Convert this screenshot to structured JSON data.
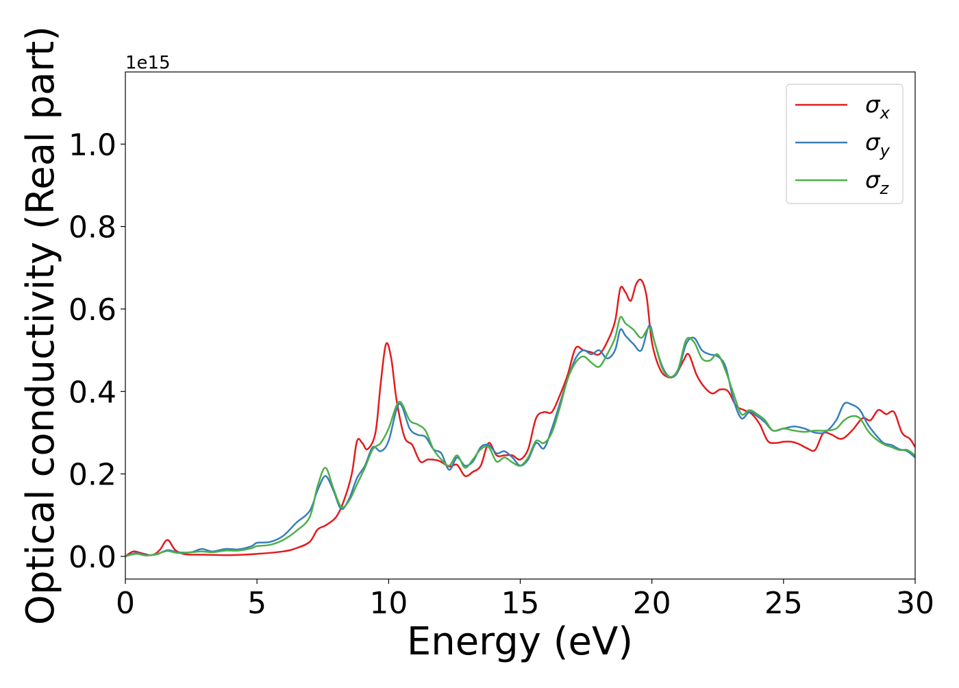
{
  "chart_data": {
    "type": "line",
    "xlabel": "Energy (eV)",
    "ylabel": "Optical conductivity (Real part)",
    "offset_label": "1e15",
    "xlim": [
      0,
      30
    ],
    "ylim": [
      -0.055,
      1.175
    ],
    "x_ticks": [
      0,
      5,
      10,
      15,
      20,
      25,
      30
    ],
    "x_tick_labels": [
      "0",
      "5",
      "10",
      "15",
      "20",
      "25",
      "30"
    ],
    "y_ticks": [
      0.0,
      0.2,
      0.4,
      0.6,
      0.8,
      1.0
    ],
    "y_tick_labels": [
      "0.0",
      "0.2",
      "0.4",
      "0.6",
      "0.8",
      "1.0"
    ],
    "grid": false,
    "legend_position": "top-right",
    "series": [
      {
        "name": "σx",
        "symbol": "σ",
        "subscript": "x",
        "color": "#e41a1c",
        "points": [
          [
            0,
            0.0
          ],
          [
            0.3,
            0.012
          ],
          [
            0.6,
            0.008
          ],
          [
            1.0,
            0.003
          ],
          [
            1.3,
            0.015
          ],
          [
            1.6,
            0.04
          ],
          [
            1.9,
            0.015
          ],
          [
            2.3,
            0.005
          ],
          [
            3,
            0.004
          ],
          [
            4,
            0.003
          ],
          [
            5,
            0.006
          ],
          [
            6,
            0.012
          ],
          [
            6.5,
            0.02
          ],
          [
            7,
            0.035
          ],
          [
            7.3,
            0.065
          ],
          [
            7.6,
            0.075
          ],
          [
            8,
            0.095
          ],
          [
            8.3,
            0.135
          ],
          [
            8.6,
            0.2
          ],
          [
            8.8,
            0.28
          ],
          [
            9.0,
            0.275
          ],
          [
            9.2,
            0.26
          ],
          [
            9.5,
            0.3
          ],
          [
            9.7,
            0.42
          ],
          [
            9.9,
            0.515
          ],
          [
            10.1,
            0.48
          ],
          [
            10.3,
            0.38
          ],
          [
            10.6,
            0.29
          ],
          [
            10.9,
            0.27
          ],
          [
            11.2,
            0.23
          ],
          [
            11.5,
            0.235
          ],
          [
            11.9,
            0.232
          ],
          [
            12.3,
            0.218
          ],
          [
            12.6,
            0.222
          ],
          [
            12.9,
            0.195
          ],
          [
            13.2,
            0.205
          ],
          [
            13.5,
            0.22
          ],
          [
            13.8,
            0.275
          ],
          [
            14.1,
            0.245
          ],
          [
            14.4,
            0.245
          ],
          [
            14.7,
            0.245
          ],
          [
            15.0,
            0.235
          ],
          [
            15.3,
            0.26
          ],
          [
            15.6,
            0.335
          ],
          [
            15.9,
            0.35
          ],
          [
            16.2,
            0.35
          ],
          [
            16.5,
            0.39
          ],
          [
            16.8,
            0.44
          ],
          [
            17.1,
            0.505
          ],
          [
            17.4,
            0.5
          ],
          [
            17.7,
            0.495
          ],
          [
            18.0,
            0.49
          ],
          [
            18.3,
            0.52
          ],
          [
            18.6,
            0.57
          ],
          [
            18.8,
            0.65
          ],
          [
            19.0,
            0.64
          ],
          [
            19.2,
            0.62
          ],
          [
            19.4,
            0.66
          ],
          [
            19.6,
            0.67
          ],
          [
            19.8,
            0.63
          ],
          [
            20.0,
            0.52
          ],
          [
            20.3,
            0.455
          ],
          [
            20.6,
            0.435
          ],
          [
            20.9,
            0.44
          ],
          [
            21.2,
            0.475
          ],
          [
            21.4,
            0.49
          ],
          [
            21.7,
            0.44
          ],
          [
            22.0,
            0.41
          ],
          [
            22.3,
            0.395
          ],
          [
            22.6,
            0.405
          ],
          [
            22.9,
            0.4
          ],
          [
            23.2,
            0.365
          ],
          [
            23.5,
            0.355
          ],
          [
            23.8,
            0.345
          ],
          [
            24.1,
            0.32
          ],
          [
            24.4,
            0.28
          ],
          [
            24.7,
            0.275
          ],
          [
            25.0,
            0.278
          ],
          [
            25.3,
            0.278
          ],
          [
            25.6,
            0.272
          ],
          [
            25.9,
            0.262
          ],
          [
            26.2,
            0.258
          ],
          [
            26.5,
            0.298
          ],
          [
            26.8,
            0.296
          ],
          [
            27.2,
            0.285
          ],
          [
            27.6,
            0.305
          ],
          [
            28.0,
            0.335
          ],
          [
            28.3,
            0.33
          ],
          [
            28.6,
            0.355
          ],
          [
            28.9,
            0.345
          ],
          [
            29.2,
            0.35
          ],
          [
            29.5,
            0.3
          ],
          [
            29.8,
            0.285
          ],
          [
            30.0,
            0.265
          ]
        ]
      },
      {
        "name": "σy",
        "symbol": "σ",
        "subscript": "y",
        "color": "#377eb8",
        "points": [
          [
            0,
            0.0
          ],
          [
            0.4,
            0.008
          ],
          [
            0.8,
            0.003
          ],
          [
            1.2,
            0.005
          ],
          [
            1.6,
            0.015
          ],
          [
            2.0,
            0.01
          ],
          [
            2.5,
            0.01
          ],
          [
            2.9,
            0.018
          ],
          [
            3.3,
            0.012
          ],
          [
            3.8,
            0.018
          ],
          [
            4.3,
            0.017
          ],
          [
            4.8,
            0.025
          ],
          [
            5.0,
            0.033
          ],
          [
            5.5,
            0.035
          ],
          [
            6.0,
            0.05
          ],
          [
            6.5,
            0.082
          ],
          [
            7.0,
            0.11
          ],
          [
            7.3,
            0.16
          ],
          [
            7.6,
            0.195
          ],
          [
            7.9,
            0.16
          ],
          [
            8.2,
            0.115
          ],
          [
            8.5,
            0.14
          ],
          [
            8.8,
            0.19
          ],
          [
            9.1,
            0.22
          ],
          [
            9.4,
            0.265
          ],
          [
            9.7,
            0.255
          ],
          [
            10.0,
            0.28
          ],
          [
            10.4,
            0.37
          ],
          [
            10.8,
            0.31
          ],
          [
            11.1,
            0.295
          ],
          [
            11.4,
            0.29
          ],
          [
            11.7,
            0.26
          ],
          [
            12.0,
            0.25
          ],
          [
            12.3,
            0.21
          ],
          [
            12.6,
            0.24
          ],
          [
            12.9,
            0.22
          ],
          [
            13.2,
            0.23
          ],
          [
            13.5,
            0.265
          ],
          [
            13.8,
            0.27
          ],
          [
            14.1,
            0.25
          ],
          [
            14.4,
            0.255
          ],
          [
            14.7,
            0.24
          ],
          [
            15.0,
            0.22
          ],
          [
            15.3,
            0.235
          ],
          [
            15.6,
            0.275
          ],
          [
            15.9,
            0.262
          ],
          [
            16.2,
            0.31
          ],
          [
            16.5,
            0.37
          ],
          [
            16.8,
            0.43
          ],
          [
            17.1,
            0.48
          ],
          [
            17.4,
            0.5
          ],
          [
            17.7,
            0.49
          ],
          [
            18.0,
            0.5
          ],
          [
            18.3,
            0.48
          ],
          [
            18.6,
            0.5
          ],
          [
            18.8,
            0.55
          ],
          [
            19.0,
            0.535
          ],
          [
            19.3,
            0.515
          ],
          [
            19.6,
            0.5
          ],
          [
            19.9,
            0.56
          ],
          [
            20.1,
            0.52
          ],
          [
            20.4,
            0.46
          ],
          [
            20.7,
            0.435
          ],
          [
            21.0,
            0.45
          ],
          [
            21.3,
            0.515
          ],
          [
            21.6,
            0.53
          ],
          [
            21.9,
            0.5
          ],
          [
            22.2,
            0.49
          ],
          [
            22.5,
            0.485
          ],
          [
            22.8,
            0.46
          ],
          [
            23.1,
            0.38
          ],
          [
            23.4,
            0.335
          ],
          [
            23.7,
            0.35
          ],
          [
            24.0,
            0.34
          ],
          [
            24.3,
            0.325
          ],
          [
            24.6,
            0.305
          ],
          [
            25.0,
            0.31
          ],
          [
            25.4,
            0.315
          ],
          [
            25.8,
            0.31
          ],
          [
            26.2,
            0.3
          ],
          [
            26.6,
            0.302
          ],
          [
            27.0,
            0.33
          ],
          [
            27.3,
            0.37
          ],
          [
            27.6,
            0.368
          ],
          [
            27.9,
            0.355
          ],
          [
            28.2,
            0.32
          ],
          [
            28.5,
            0.295
          ],
          [
            28.8,
            0.275
          ],
          [
            29.1,
            0.27
          ],
          [
            29.4,
            0.26
          ],
          [
            29.7,
            0.255
          ],
          [
            30.0,
            0.24
          ]
        ]
      },
      {
        "name": "σz",
        "symbol": "σ",
        "subscript": "z",
        "color": "#4daf4a",
        "points": [
          [
            0,
            0.0
          ],
          [
            0.4,
            0.006
          ],
          [
            0.8,
            0.002
          ],
          [
            1.2,
            0.006
          ],
          [
            1.6,
            0.013
          ],
          [
            2.0,
            0.008
          ],
          [
            2.5,
            0.01
          ],
          [
            2.9,
            0.012
          ],
          [
            3.3,
            0.01
          ],
          [
            3.8,
            0.014
          ],
          [
            4.3,
            0.014
          ],
          [
            4.8,
            0.02
          ],
          [
            5.0,
            0.025
          ],
          [
            5.5,
            0.028
          ],
          [
            6.0,
            0.04
          ],
          [
            6.5,
            0.062
          ],
          [
            7.0,
            0.095
          ],
          [
            7.3,
            0.17
          ],
          [
            7.6,
            0.215
          ],
          [
            7.9,
            0.165
          ],
          [
            8.2,
            0.12
          ],
          [
            8.5,
            0.135
          ],
          [
            8.8,
            0.175
          ],
          [
            9.1,
            0.215
          ],
          [
            9.4,
            0.26
          ],
          [
            9.7,
            0.275
          ],
          [
            10.0,
            0.31
          ],
          [
            10.4,
            0.375
          ],
          [
            10.8,
            0.33
          ],
          [
            11.1,
            0.32
          ],
          [
            11.4,
            0.305
          ],
          [
            11.7,
            0.26
          ],
          [
            12.0,
            0.235
          ],
          [
            12.3,
            0.22
          ],
          [
            12.6,
            0.245
          ],
          [
            12.9,
            0.215
          ],
          [
            13.2,
            0.235
          ],
          [
            13.5,
            0.26
          ],
          [
            13.8,
            0.265
          ],
          [
            14.1,
            0.23
          ],
          [
            14.4,
            0.24
          ],
          [
            14.7,
            0.228
          ],
          [
            15.0,
            0.22
          ],
          [
            15.3,
            0.24
          ],
          [
            15.6,
            0.28
          ],
          [
            15.9,
            0.275
          ],
          [
            16.2,
            0.3
          ],
          [
            16.5,
            0.36
          ],
          [
            16.8,
            0.43
          ],
          [
            17.1,
            0.47
          ],
          [
            17.4,
            0.485
          ],
          [
            17.7,
            0.47
          ],
          [
            18.0,
            0.46
          ],
          [
            18.3,
            0.49
          ],
          [
            18.6,
            0.53
          ],
          [
            18.8,
            0.58
          ],
          [
            19.0,
            0.565
          ],
          [
            19.3,
            0.55
          ],
          [
            19.6,
            0.53
          ],
          [
            19.9,
            0.555
          ],
          [
            20.1,
            0.52
          ],
          [
            20.4,
            0.455
          ],
          [
            20.7,
            0.435
          ],
          [
            21.0,
            0.455
          ],
          [
            21.3,
            0.525
          ],
          [
            21.6,
            0.52
          ],
          [
            21.9,
            0.48
          ],
          [
            22.2,
            0.475
          ],
          [
            22.5,
            0.49
          ],
          [
            22.8,
            0.45
          ],
          [
            23.1,
            0.395
          ],
          [
            23.4,
            0.345
          ],
          [
            23.7,
            0.355
          ],
          [
            24.0,
            0.345
          ],
          [
            24.3,
            0.33
          ],
          [
            24.6,
            0.305
          ],
          [
            25.0,
            0.31
          ],
          [
            25.4,
            0.305
          ],
          [
            25.8,
            0.302
          ],
          [
            26.2,
            0.305
          ],
          [
            26.6,
            0.305
          ],
          [
            27.0,
            0.31
          ],
          [
            27.3,
            0.33
          ],
          [
            27.6,
            0.34
          ],
          [
            27.9,
            0.335
          ],
          [
            28.2,
            0.305
          ],
          [
            28.5,
            0.285
          ],
          [
            28.8,
            0.272
          ],
          [
            29.1,
            0.265
          ],
          [
            29.4,
            0.258
          ],
          [
            29.7,
            0.258
          ],
          [
            30.0,
            0.245
          ]
        ]
      }
    ]
  }
}
